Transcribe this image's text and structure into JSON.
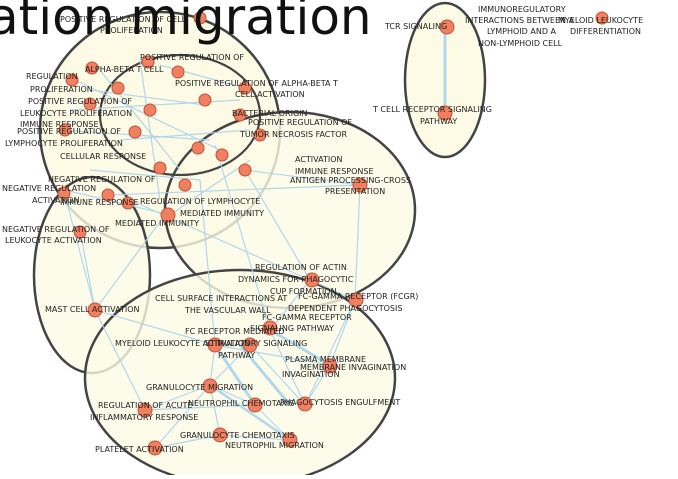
{
  "title": "ation migration",
  "colors": {
    "node": "#f08060",
    "node_stroke": "#c0503a",
    "edge": "#a9d3ec",
    "cluster_fill": "#fdfbe6",
    "cluster_stroke": "#444444"
  },
  "labels": {
    "l1": "POSITIVE REGULATION OF CELL",
    "l2": "PROLIFERATION",
    "l3": "IMMUNOREGULATORY",
    "l4": "INTERACTIONS BETWEEN A",
    "l5": "MYELOID LEUKOCYTE",
    "l6": "LYMPHOID AND A",
    "l7": "DIFFERENTIATION",
    "l8": "TCR SIGNALING",
    "l9": "NON-LYMPHOID CELL",
    "l10": "POSITIVE REGULATION OF",
    "l11": "ALPHA-BETA T CELL",
    "l12": "REGULATION",
    "l13": "PROLIFERATION",
    "l14": "POSITIVE REGULATION OF",
    "l15": "LEUKOCYTE PROLIFERATION",
    "l16": "IMMUNE RESPONSE",
    "l17": "POSITIVE REGULATION OF",
    "l18": "LYMPHOCYTE PROLIFERATION",
    "l19": "POSITIVE REGULATION OF ALPHA-BETA T",
    "l20": "CELL ACTIVATION",
    "l21": "BACTERIAL ORIGIN",
    "l22": "POSITIVE REGULATION OF",
    "l23": "TUMOR NECROSIS FACTOR",
    "l24": "T CELL RECEPTOR SIGNALING",
    "l25": "PATHWAY",
    "l26": "CELLULAR RESPONSE",
    "l27": "ACTIVATION",
    "l28": "IMMUNE RESPONSE",
    "l29": "ANTIGEN PROCESSING-CROSS",
    "l30": "PRESENTATION",
    "l31": "NEGATIVE REGULATION",
    "l32": "ACTIVATION",
    "l33": "NEGATIVE REGULATION OF",
    "l34": "IMMUNE RESPONSE",
    "l35": "REGULATION OF LYMPHOCYTE",
    "l36": "MEDIATED IMMUNITY",
    "l37": "MEDIATED IMMUNITY",
    "l38": "NEGATIVE REGULATION OF",
    "l39": "LEUKOCYTE ACTIVATION",
    "l40": "REGULATION OF ACTIN",
    "l41": "DYNAMICS FOR PHAGOCYTIC",
    "l42": "CUP FORMATION",
    "l43": "FC-GAMMA RECEPTOR (FCGR)",
    "l44": "DEPENDENT PHAGOCYTOSIS",
    "l45": "CELL SURFACE INTERACTIONS AT",
    "l46": "THE VASCULAR WALL",
    "l47": "MAST CELL ACTIVATION",
    "l48": "FC-GAMMA RECEPTOR",
    "l49": "SIGNALING PATHWAY",
    "l50": "FC RECEPTOR MEDIATED",
    "l51": "MYELOID LEUKOCYTE ACTIVATION",
    "l52": "STIMULATORY SIGNALING",
    "l53": "PATHWAY",
    "l54": "PLASMA MEMBRANE",
    "l55": "MEMBRANE INVAGINATION",
    "l56": "INVAGINATION",
    "l57": "GRANULOCYTE MIGRATION",
    "l58": "REGULATION OF ACUTE",
    "l59": "NEUTROPHIL CHEMOTAXIS",
    "l60": "PHAGOCYTOSIS ENGULFMENT",
    "l61": "INFLAMMATORY RESPONSE",
    "l62": "GRANULOCYTE CHEMOTAXIS",
    "l63": "PLATELET ACTIVATION",
    "l64": "NEUTROPHIL MIGRATION"
  }
}
